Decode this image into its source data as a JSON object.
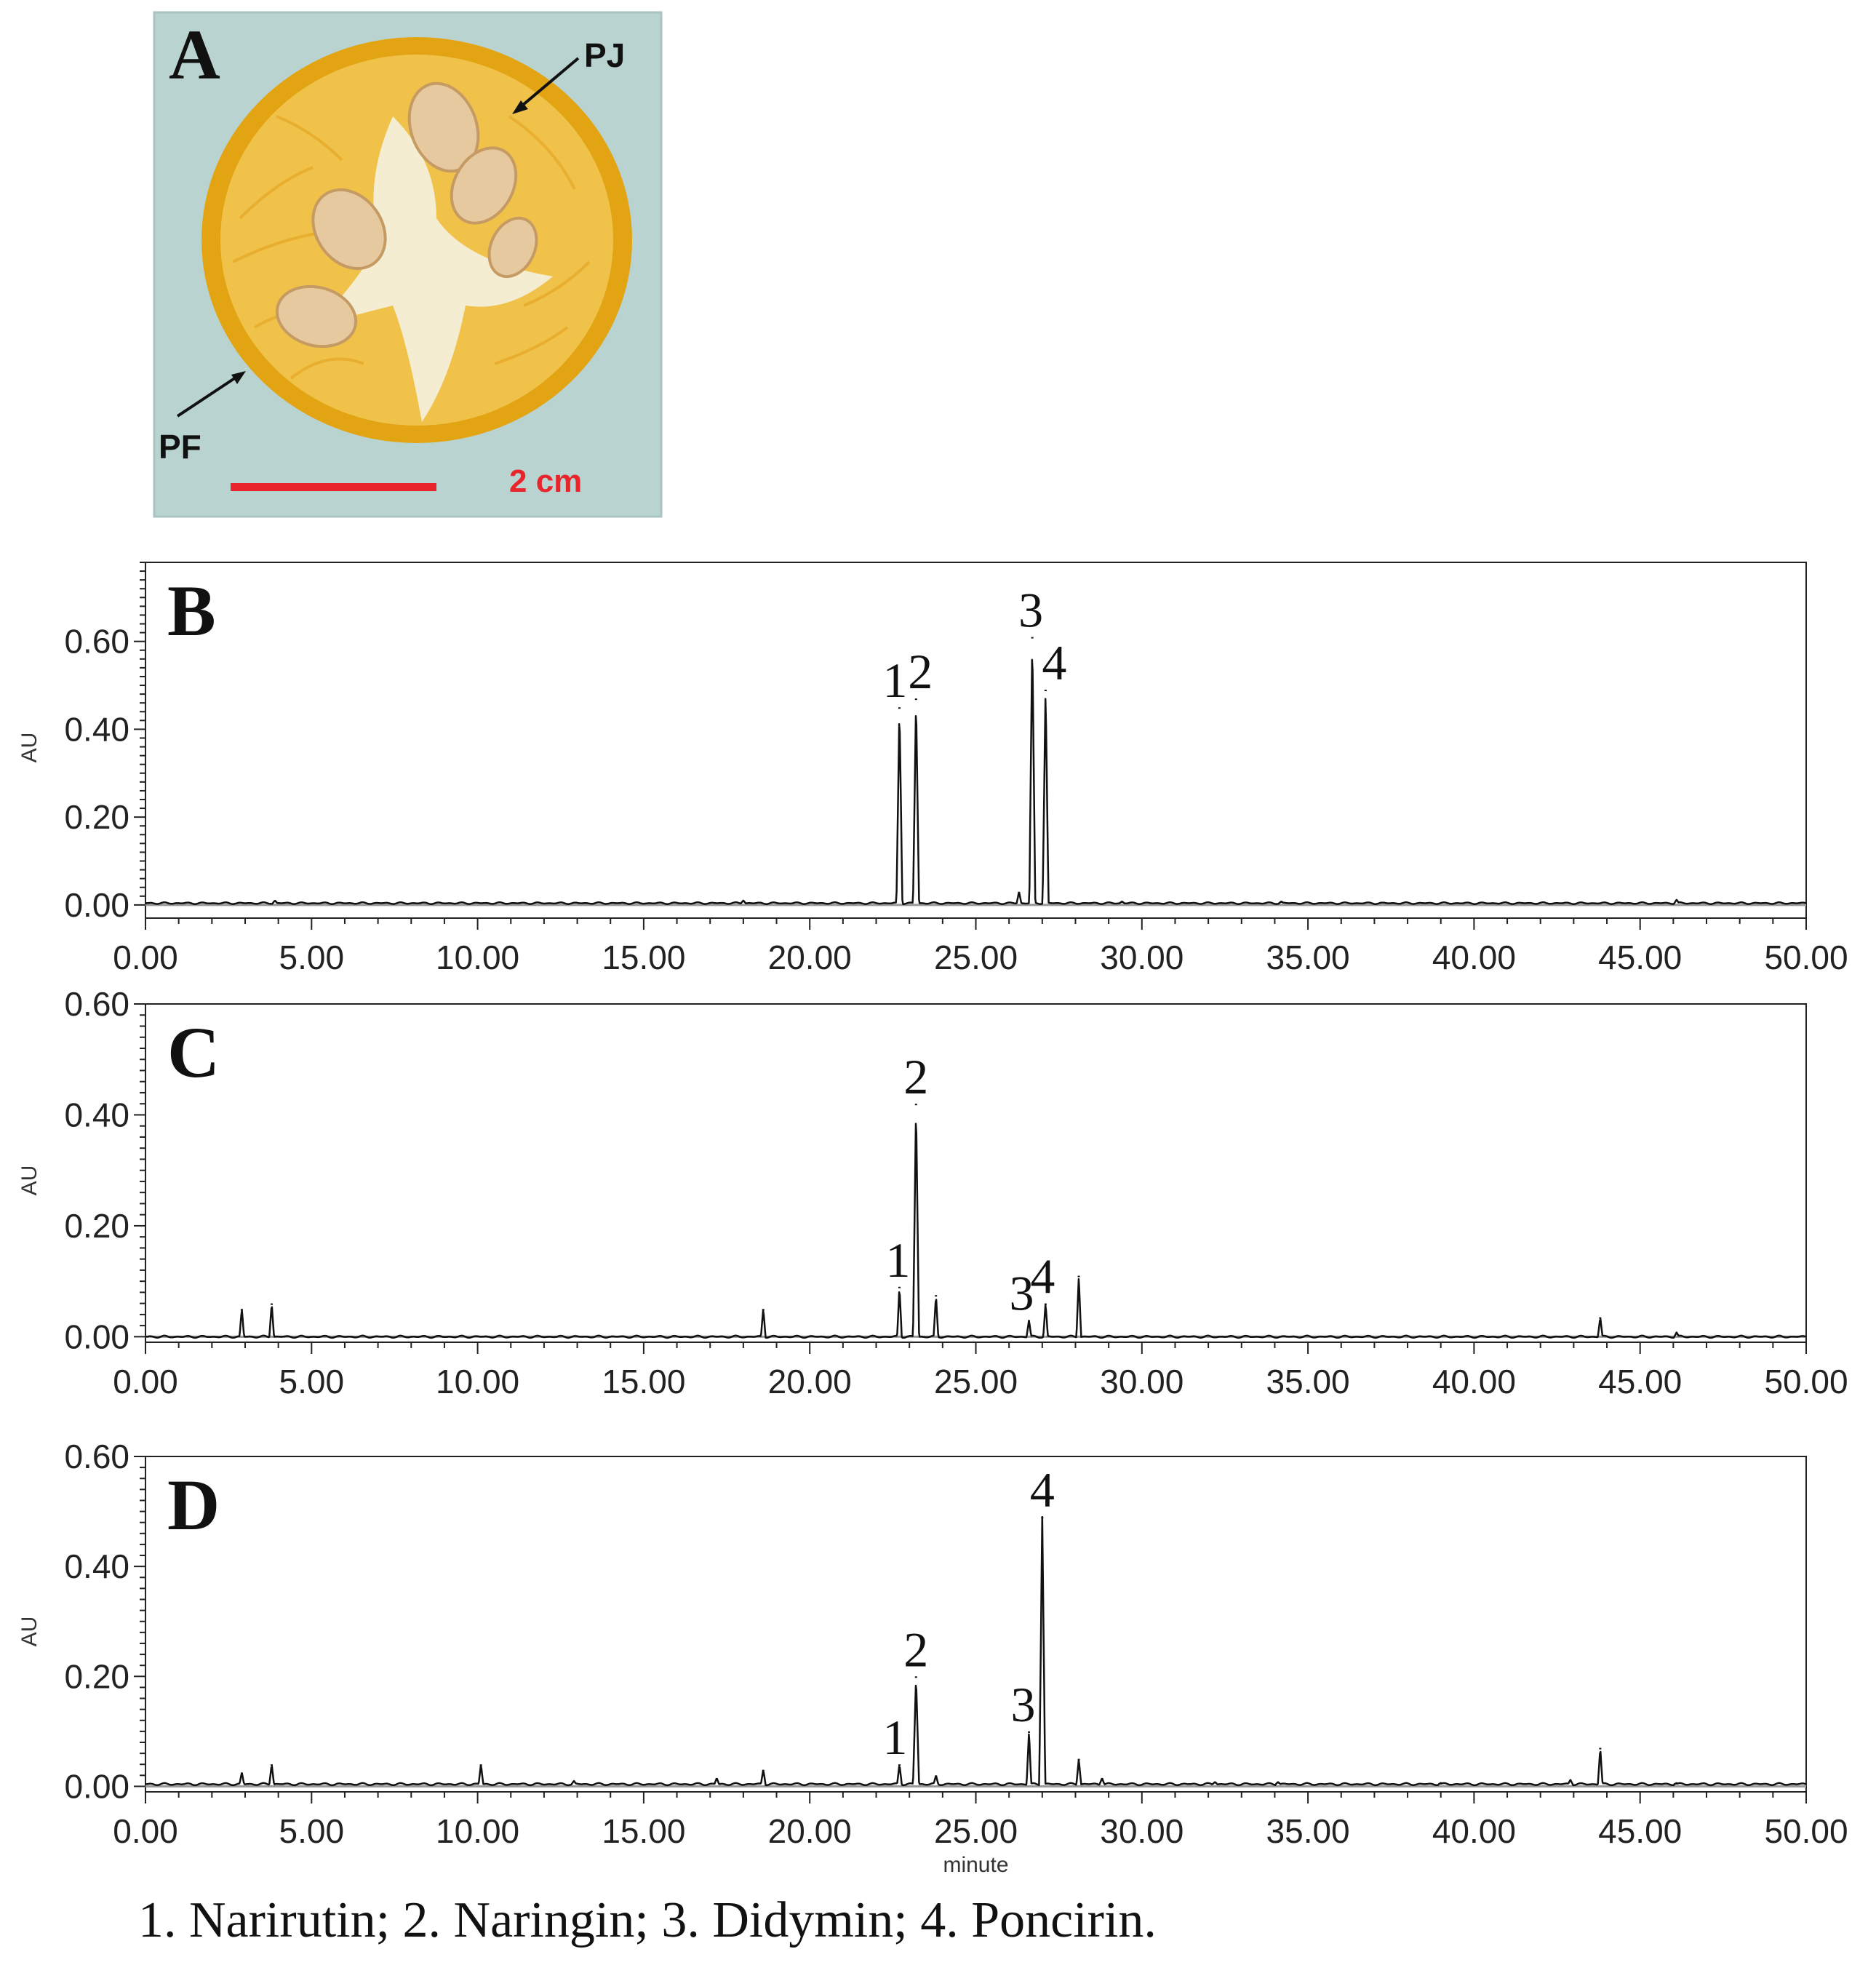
{
  "photo": {
    "panel_label": "A",
    "annotations": [
      "PJ",
      "PF"
    ],
    "scale_bar_label": "2 cm",
    "colors": {
      "background": "#b9d3d1",
      "peel": "#e3a413",
      "pulp": "#f0c24a",
      "scale_bar": "#e8252b"
    }
  },
  "chart_data": [
    {
      "type": "line",
      "panel_label": "B",
      "ylabel": "AU",
      "xlabel": "",
      "xlim": [
        0,
        50
      ],
      "ylim": [
        -0.03,
        0.78
      ],
      "x_ticks": [
        "0.00",
        "5.00",
        "10.00",
        "15.00",
        "20.00",
        "25.00",
        "30.00",
        "35.00",
        "40.00",
        "45.00",
        "50.00"
      ],
      "y_ticks": [
        "0.00",
        "0.20",
        "0.40",
        "0.60"
      ],
      "y_tick_values": [
        0,
        0.2,
        0.4,
        0.6
      ],
      "baseline": 0.004,
      "peaks": [
        {
          "x": 22.7,
          "y": 0.45
        },
        {
          "x": 23.2,
          "y": 0.47
        },
        {
          "x": 26.3,
          "y": 0.03
        },
        {
          "x": 26.7,
          "y": 0.61
        },
        {
          "x": 27.1,
          "y": 0.49
        },
        {
          "x": 3.9,
          "y": 0.01
        },
        {
          "x": 18.0,
          "y": 0.01
        },
        {
          "x": 29.4,
          "y": 0.008
        },
        {
          "x": 34.2,
          "y": 0.008
        },
        {
          "x": 46.1,
          "y": 0.012
        }
      ],
      "peak_labels": [
        {
          "text": "1",
          "x": 22.7,
          "y": 0.45
        },
        {
          "text": "2",
          "x": 23.2,
          "y": 0.47
        },
        {
          "text": "3",
          "x": 26.7,
          "y": 0.61
        },
        {
          "text": "4",
          "x": 27.1,
          "y": 0.49
        }
      ]
    },
    {
      "type": "line",
      "panel_label": "C",
      "ylabel": "AU",
      "xlabel": "",
      "xlim": [
        0,
        50
      ],
      "ylim": [
        -0.01,
        0.6
      ],
      "x_ticks": [
        "0.00",
        "5.00",
        "10.00",
        "15.00",
        "20.00",
        "25.00",
        "30.00",
        "35.00",
        "40.00",
        "45.00",
        "50.00"
      ],
      "y_ticks": [
        "0.00",
        "0.20",
        "0.40",
        "0.60"
      ],
      "y_tick_values": [
        0,
        0.2,
        0.4,
        0.6
      ],
      "baseline": 0.0,
      "peaks": [
        {
          "x": 2.9,
          "y": 0.05
        },
        {
          "x": 3.8,
          "y": 0.06
        },
        {
          "x": 18.6,
          "y": 0.05
        },
        {
          "x": 22.7,
          "y": 0.09
        },
        {
          "x": 23.2,
          "y": 0.42
        },
        {
          "x": 23.8,
          "y": 0.075
        },
        {
          "x": 26.6,
          "y": 0.03
        },
        {
          "x": 27.1,
          "y": 0.06
        },
        {
          "x": 28.1,
          "y": 0.11
        },
        {
          "x": 43.8,
          "y": 0.035
        },
        {
          "x": 46.1,
          "y": 0.008
        }
      ],
      "peak_labels": [
        {
          "text": "1",
          "x": 22.7,
          "y": 0.09
        },
        {
          "text": "2",
          "x": 23.2,
          "y": 0.42
        },
        {
          "text": "3",
          "x": 26.6,
          "y": 0.03
        },
        {
          "text": "4",
          "x": 27.1,
          "y": 0.06
        }
      ]
    },
    {
      "type": "line",
      "panel_label": "D",
      "ylabel": "AU",
      "xlabel": "minute",
      "xlim": [
        0,
        50
      ],
      "ylim": [
        -0.01,
        0.6
      ],
      "x_ticks": [
        "0.00",
        "5.00",
        "10.00",
        "15.00",
        "20.00",
        "25.00",
        "30.00",
        "35.00",
        "40.00",
        "45.00",
        "50.00"
      ],
      "y_ticks": [
        "0.00",
        "0.20",
        "0.40",
        "0.60"
      ],
      "y_tick_values": [
        0,
        0.2,
        0.4,
        0.6
      ],
      "baseline": 0.004,
      "peaks": [
        {
          "x": 2.9,
          "y": 0.025
        },
        {
          "x": 3.8,
          "y": 0.04
        },
        {
          "x": 10.1,
          "y": 0.04
        },
        {
          "x": 12.9,
          "y": 0.01
        },
        {
          "x": 17.2,
          "y": 0.015
        },
        {
          "x": 18.6,
          "y": 0.03
        },
        {
          "x": 22.7,
          "y": 0.04
        },
        {
          "x": 23.2,
          "y": 0.2
        },
        {
          "x": 23.8,
          "y": 0.02
        },
        {
          "x": 26.6,
          "y": 0.1
        },
        {
          "x": 27.0,
          "y": 0.49
        },
        {
          "x": 28.1,
          "y": 0.05
        },
        {
          "x": 28.8,
          "y": 0.015
        },
        {
          "x": 32.2,
          "y": 0.008
        },
        {
          "x": 34.1,
          "y": 0.008
        },
        {
          "x": 39.0,
          "y": 0.006
        },
        {
          "x": 42.9,
          "y": 0.012
        },
        {
          "x": 43.8,
          "y": 0.07
        },
        {
          "x": 46.1,
          "y": 0.006
        }
      ],
      "peak_labels": [
        {
          "text": "1",
          "x": 22.7,
          "y": 0.04
        },
        {
          "text": "2",
          "x": 23.2,
          "y": 0.2
        },
        {
          "text": "3",
          "x": 26.6,
          "y": 0.1
        },
        {
          "text": "4",
          "x": 27.0,
          "y": 0.49
        }
      ]
    }
  ],
  "legend": [
    "1. Narirutin;",
    "2. Naringin;",
    "3. Didymin;",
    "4. Poncirin."
  ]
}
